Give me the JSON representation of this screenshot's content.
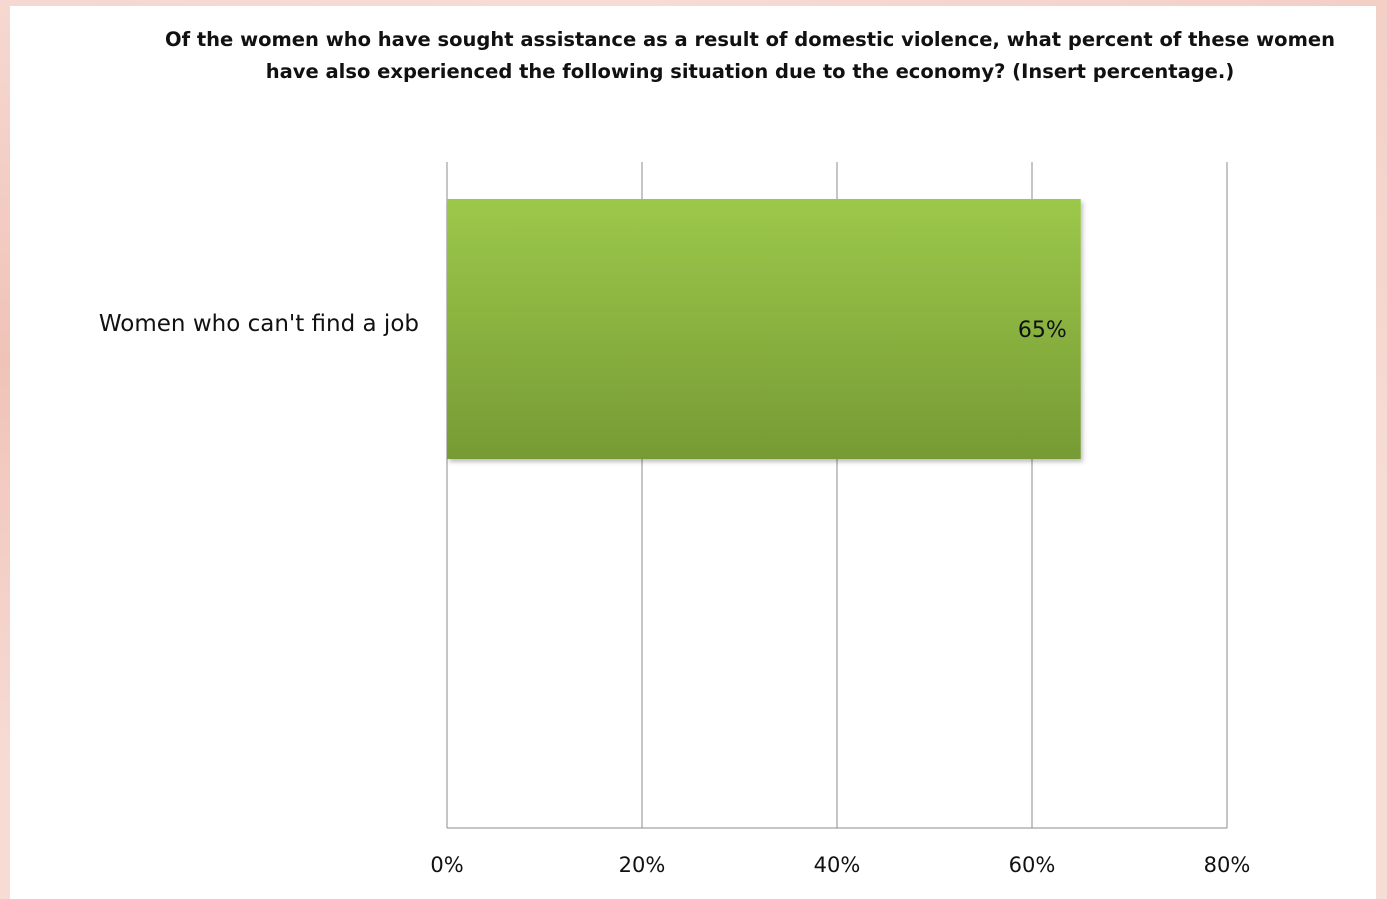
{
  "chart_data": {
    "type": "bar",
    "orientation": "horizontal",
    "title": "Of the women who have sought assistance as a result of domestic violence, what percent of these women have also experienced the following situation  due to the economy? (Insert percentage.)",
    "categories": [
      "Women who can't find a job"
    ],
    "values": [
      65
    ],
    "data_labels": [
      "65%"
    ],
    "xlim": [
      0,
      80
    ],
    "x_ticks": [
      "0%",
      "20%",
      "40%",
      "60%",
      "80%"
    ],
    "x_tick_values": [
      0,
      20,
      40,
      60,
      80
    ],
    "xlabel": "",
    "ylabel": "",
    "grid": true,
    "legend": "none",
    "bar_color_top": "#9cc84a",
    "bar_color_bottom": "#769b35"
  }
}
